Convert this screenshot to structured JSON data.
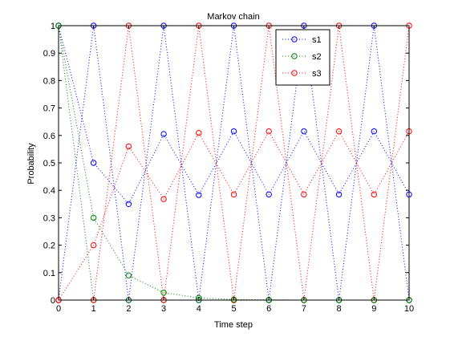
{
  "chart_data": {
    "type": "line",
    "title": "Markov chain",
    "xlabel": "Time step",
    "ylabel": "Probability",
    "xlim": [
      0,
      10
    ],
    "ylim": [
      0,
      1
    ],
    "xticks": [
      "0",
      "1",
      "2",
      "3",
      "4",
      "5",
      "6",
      "7",
      "8",
      "9",
      "10"
    ],
    "yticks": [
      "0",
      "0.1",
      "0.2",
      "0.3",
      "0.4",
      "0.5",
      "0.6",
      "0.7",
      "0.8",
      "0.9",
      "1"
    ],
    "grid": false,
    "legend_position": "top-right",
    "line_style": "dotted",
    "marker": "circle-open",
    "x": [
      0,
      1,
      2,
      3,
      4,
      5,
      6,
      7,
      8,
      9,
      10
    ],
    "series": [
      {
        "name": "s1",
        "color": "#0000ff",
        "values": [
          0,
          1,
          0,
          1,
          0,
          1,
          0,
          1,
          0,
          1,
          0
        ]
      },
      {
        "name": "s2",
        "color": "#008000",
        "values": [
          1,
          0,
          0,
          0,
          0,
          0,
          0,
          0,
          0,
          0,
          0
        ]
      },
      {
        "name": "s3",
        "color": "#ff0000",
        "values": [
          0,
          0,
          1,
          0,
          1,
          0,
          1,
          0,
          1,
          0,
          1
        ]
      },
      {
        "name": "s1",
        "color": "#0000ff",
        "values": [
          1,
          0.5,
          0.35,
          0.605,
          0.383,
          0.615,
          0.385,
          0.615,
          0.385,
          0.615,
          0.385
        ]
      },
      {
        "name": "s2",
        "color": "#008000",
        "values": [
          1,
          0.3,
          0.09,
          0.027,
          0.008,
          0.002,
          0.001,
          0,
          0,
          0,
          0
        ]
      },
      {
        "name": "s3",
        "color": "#ff0000",
        "values": [
          0,
          0.2,
          0.56,
          0.368,
          0.609,
          0.385,
          0.615,
          0.385,
          0.615,
          0.385,
          0.615
        ]
      }
    ],
    "legend": [
      {
        "label": "s1",
        "color": "#0000ff"
      },
      {
        "label": "s2",
        "color": "#008000"
      },
      {
        "label": "s3",
        "color": "#ff0000"
      }
    ]
  }
}
